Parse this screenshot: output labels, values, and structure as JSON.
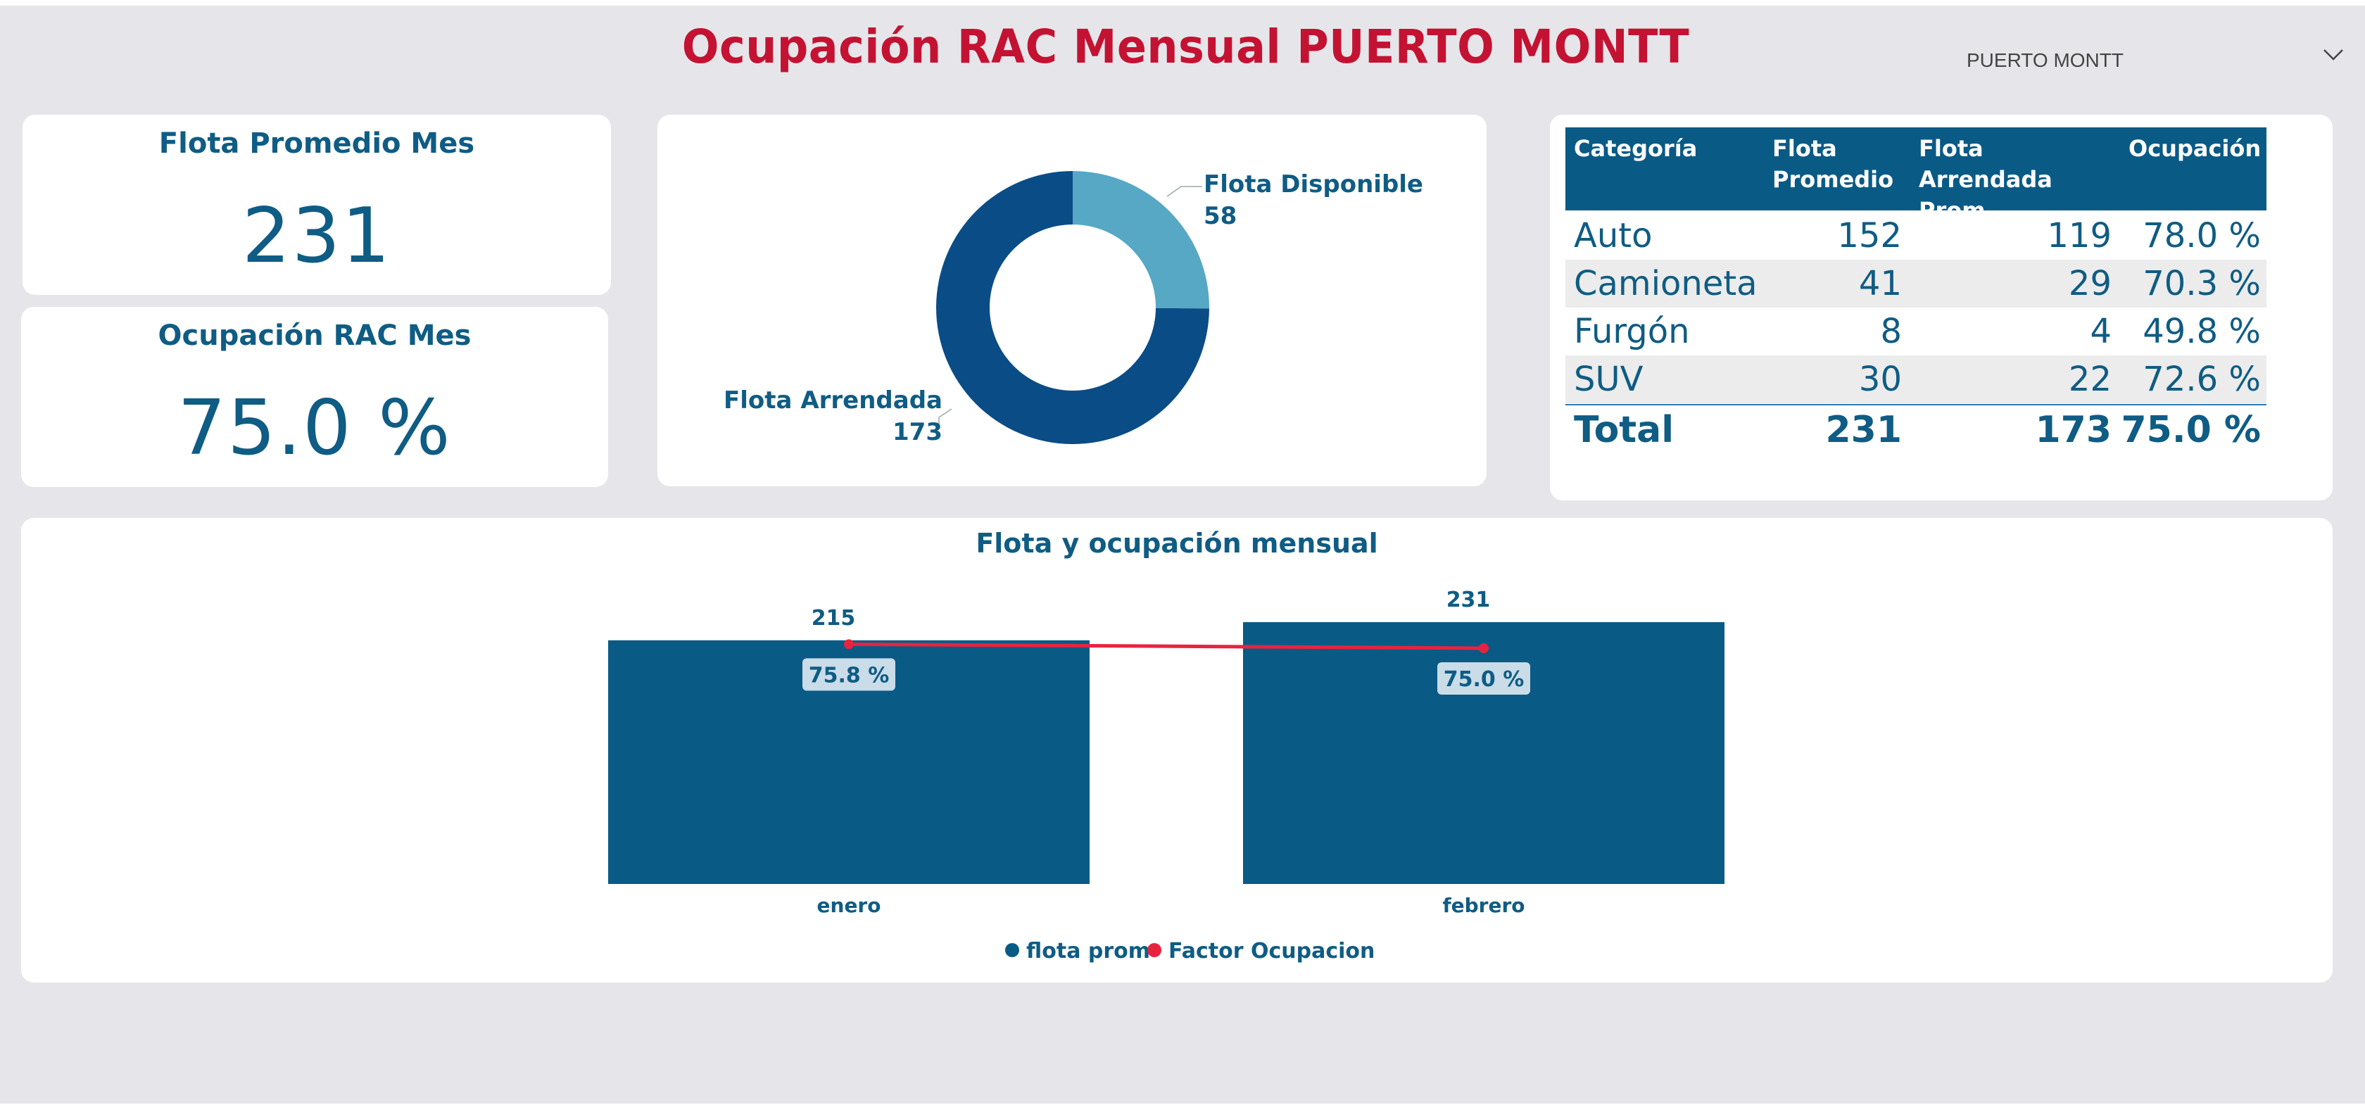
{
  "header": {
    "title": "Ocupación RAC Mensual PUERTO MONTT"
  },
  "slicer": {
    "value": "PUERTO MONTT",
    "icon": "chevron-down-icon"
  },
  "kpis": {
    "flota_label": "Flota Promedio Mes",
    "flota_value": "231",
    "ocupacion_label": "Ocupación RAC Mes",
    "ocupacion_value": "75.0 %"
  },
  "donut": {
    "slices": [
      {
        "name": "Flota Disponible",
        "value": 58,
        "label": "58",
        "color": "#56a8c5"
      },
      {
        "name": "Flota Arrendada",
        "value": 173,
        "label": "173",
        "color": "#0a4c86"
      }
    ]
  },
  "table": {
    "headers": [
      "Categoría",
      "Flota Promedio",
      "Flota Arrendada Prom",
      "Ocupación"
    ],
    "rows": [
      [
        "Auto",
        "152",
        "119",
        "78.0 %"
      ],
      [
        "Camioneta",
        "41",
        "29",
        "70.3 %"
      ],
      [
        "Furgón",
        "8",
        "4",
        "49.8 %"
      ],
      [
        "SUV",
        "30",
        "22",
        "72.6 %"
      ]
    ],
    "total": [
      "Total",
      "231",
      "173",
      "75.0 %"
    ]
  },
  "chart_data": {
    "type": "bar",
    "title": "Flota y ocupación mensual",
    "categories": [
      "enero",
      "febrero"
    ],
    "series": [
      {
        "name": "flota prom",
        "type": "bar",
        "values": [
          215,
          231
        ],
        "labels": [
          "215",
          "231"
        ],
        "color": "#0a5a86"
      },
      {
        "name": "Factor Ocupacion",
        "type": "line",
        "values": [
          75.8,
          75.0
        ],
        "labels": [
          "75.8 %",
          "75.0 %"
        ],
        "color": "#e8233f"
      }
    ],
    "legend_position": "bottom",
    "grid": false
  }
}
